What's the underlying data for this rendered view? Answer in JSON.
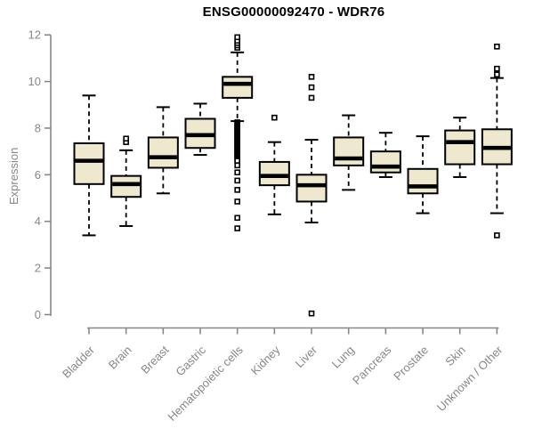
{
  "figure": {
    "title": "ENSG00000092470 - WDR76",
    "y_axis_label": "Expression"
  },
  "chart_data": {
    "type": "boxplot",
    "title": "ENSG00000092470 - WDR76",
    "xlabel": "",
    "ylabel": "Expression",
    "ylim": [
      0,
      12
    ],
    "yticks": [
      0,
      2,
      4,
      6,
      8,
      10,
      12
    ],
    "grid": false,
    "x_label_rotation_deg": 45,
    "categories": [
      "Bladder",
      "Brain",
      "Breast",
      "Gastric",
      "Hematopoietic cells",
      "Kidney",
      "Liver",
      "Lung",
      "Pancreas",
      "Prostate",
      "Skin",
      "Unknown / Other"
    ],
    "series": [
      {
        "category": "Bladder",
        "whisker_low": 3.4,
        "q1": 5.6,
        "median": 6.6,
        "q3": 7.35,
        "whisker_high": 9.4,
        "outliers": []
      },
      {
        "category": "Brain",
        "whisker_low": 3.8,
        "q1": 5.05,
        "median": 5.6,
        "q3": 5.95,
        "whisker_high": 7.05,
        "outliers": [
          7.4,
          7.55
        ]
      },
      {
        "category": "Breast",
        "whisker_low": 5.2,
        "q1": 6.3,
        "median": 6.75,
        "q3": 7.6,
        "whisker_high": 8.9,
        "outliers": []
      },
      {
        "category": "Gastric",
        "whisker_low": 6.85,
        "q1": 7.15,
        "median": 7.7,
        "q3": 8.4,
        "whisker_high": 9.05,
        "outliers": []
      },
      {
        "category": "Hematopoietic cells",
        "whisker_low": 8.3,
        "q1": 9.3,
        "median": 9.9,
        "q3": 10.2,
        "whisker_high": 11.25,
        "outliers": [
          11.45,
          11.55,
          11.65,
          11.75,
          11.9,
          8.25,
          8.2,
          8.15,
          8.1,
          8.05,
          8.0,
          7.95,
          7.9,
          7.85,
          7.8,
          7.75,
          7.7,
          7.65,
          7.6,
          7.55,
          7.5,
          7.45,
          7.4,
          7.35,
          7.3,
          7.25,
          7.2,
          7.15,
          7.1,
          7.05,
          7.0,
          6.95,
          6.9,
          6.85,
          6.8,
          6.75,
          6.7,
          6.65,
          6.6,
          6.4,
          6.1,
          5.75,
          5.35,
          4.85,
          4.15,
          3.7
        ]
      },
      {
        "category": "Kidney",
        "whisker_low": 4.3,
        "q1": 5.55,
        "median": 5.95,
        "q3": 6.55,
        "whisker_high": 7.4,
        "outliers": [
          8.45
        ]
      },
      {
        "category": "Liver",
        "whisker_low": 3.95,
        "q1": 4.85,
        "median": 5.55,
        "q3": 6.0,
        "whisker_high": 7.5,
        "outliers": [
          10.2,
          9.75,
          9.3,
          0.05
        ]
      },
      {
        "category": "Lung",
        "whisker_low": 5.35,
        "q1": 6.4,
        "median": 6.7,
        "q3": 7.6,
        "whisker_high": 8.55,
        "outliers": []
      },
      {
        "category": "Pancreas",
        "whisker_low": 5.9,
        "q1": 6.1,
        "median": 6.35,
        "q3": 7.0,
        "whisker_high": 7.8,
        "outliers": []
      },
      {
        "category": "Prostate",
        "whisker_low": 4.35,
        "q1": 5.2,
        "median": 5.5,
        "q3": 6.25,
        "whisker_high": 7.65,
        "outliers": []
      },
      {
        "category": "Skin",
        "whisker_low": 5.9,
        "q1": 6.45,
        "median": 7.4,
        "q3": 7.9,
        "whisker_high": 8.45,
        "outliers": []
      },
      {
        "category": "Unknown / Other",
        "whisker_low": 4.35,
        "q1": 6.45,
        "median": 7.15,
        "q3": 7.95,
        "whisker_high": 10.15,
        "outliers": [
          11.5,
          10.55,
          10.3,
          3.4
        ]
      }
    ],
    "colors": {
      "box_fill": "#EDE8CE",
      "box_line": "#000000",
      "median_line": "#000000",
      "whisker_line": "#000000",
      "outlier_marker": "#000000",
      "axis_line": "#888888",
      "axis_text": "#878787",
      "title_text": "#000000"
    },
    "legend": null
  }
}
